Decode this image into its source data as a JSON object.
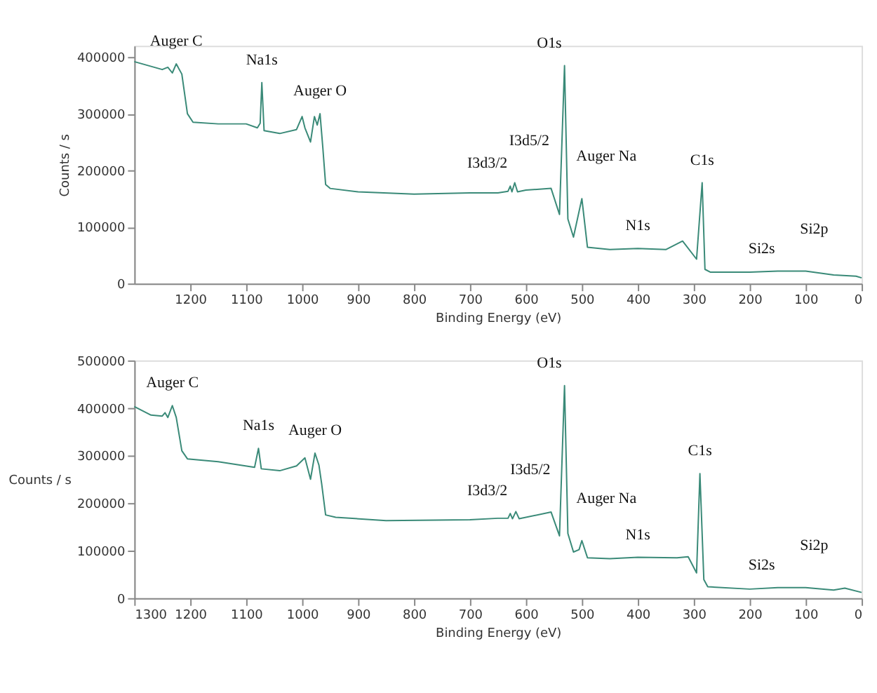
{
  "chart_data": [
    {
      "type": "line",
      "xlabel": "Binding Energy (eV)",
      "ylabel": "Counts / s",
      "xlim": [
        1300,
        0
      ],
      "ylim": [
        0,
        420000
      ],
      "xticks": [
        1200,
        1100,
        1000,
        900,
        800,
        700,
        600,
        500,
        400,
        300,
        200,
        100,
        0
      ],
      "yticks": [
        0,
        100000,
        200000,
        300000,
        400000
      ],
      "grid": false,
      "x": [
        1300,
        1250,
        1240,
        1232,
        1225,
        1215,
        1205,
        1195,
        1150,
        1100,
        1080,
        1075,
        1072,
        1068,
        1040,
        1010,
        1000,
        995,
        985,
        978,
        973,
        968,
        963,
        958,
        950,
        900,
        800,
        700,
        650,
        632,
        628,
        625,
        620,
        615,
        600,
        555,
        540,
        531,
        525,
        515,
        500,
        490,
        450,
        400,
        350,
        320,
        295,
        285,
        280,
        270,
        200,
        150,
        100,
        50,
        10,
        0
      ],
      "series": [
        {
          "color": "#3a8a78",
          "values": [
            392000,
            378000,
            382000,
            372000,
            388000,
            370000,
            300000,
            285000,
            282000,
            282000,
            275000,
            283000,
            355000,
            270000,
            265000,
            272000,
            295000,
            275000,
            250000,
            295000,
            280000,
            300000,
            240000,
            175000,
            168000,
            162000,
            158000,
            160000,
            160000,
            163000,
            172000,
            162000,
            178000,
            162000,
            165000,
            168000,
            122000,
            385000,
            114000,
            82000,
            150000,
            64000,
            60000,
            62000,
            60000,
            75000,
            43000,
            178000,
            25000,
            20000,
            20000,
            22000,
            22000,
            15000,
            13000,
            10000
          ]
        }
      ],
      "annotations": [
        {
          "text": "Auger C",
          "x": 1225,
          "y": 388000
        },
        {
          "text": "Na1s",
          "x": 1072,
          "y": 355000
        },
        {
          "text": "Auger O",
          "x": 968,
          "y": 300000
        },
        {
          "text": "I3d3/2",
          "x": 628,
          "y": 172000
        },
        {
          "text": "I3d5/2",
          "x": 620,
          "y": 178000
        },
        {
          "text": "O1s",
          "x": 531,
          "y": 385000
        },
        {
          "text": "Auger Na",
          "x": 500,
          "y": 150000
        },
        {
          "text": "N1s",
          "x": 400,
          "y": 62000
        },
        {
          "text": "C1s",
          "x": 285,
          "y": 178000
        },
        {
          "text": "Si2s",
          "x": 150,
          "y": 22000
        },
        {
          "text": "Si2p",
          "x": 100,
          "y": 22000
        }
      ]
    },
    {
      "type": "line",
      "xlabel": "Binding Energy (eV)",
      "ylabel": "Counts / s",
      "xlim": [
        1300,
        0
      ],
      "ylim": [
        0,
        500000
      ],
      "xticks": [
        1300,
        1200,
        1100,
        1000,
        900,
        800,
        700,
        600,
        500,
        400,
        300,
        200,
        100,
        0
      ],
      "yticks": [
        0,
        100000,
        200000,
        300000,
        400000,
        500000
      ],
      "grid": false,
      "x": [
        1300,
        1270,
        1250,
        1245,
        1240,
        1232,
        1225,
        1215,
        1205,
        1150,
        1085,
        1078,
        1073,
        1040,
        1010,
        995,
        985,
        977,
        970,
        965,
        958,
        940,
        850,
        700,
        650,
        632,
        628,
        624,
        618,
        612,
        555,
        540,
        531,
        525,
        515,
        505,
        500,
        490,
        450,
        400,
        330,
        310,
        295,
        289,
        282,
        275,
        200,
        150,
        100,
        50,
        30,
        0
      ],
      "series": [
        {
          "color": "#3a8a78",
          "values": [
            403000,
            385000,
            383000,
            390000,
            380000,
            405000,
            380000,
            310000,
            293000,
            287000,
            275000,
            315000,
            272000,
            268000,
            278000,
            295000,
            250000,
            305000,
            280000,
            240000,
            175000,
            170000,
            163000,
            165000,
            168000,
            168000,
            178000,
            167000,
            182000,
            167000,
            181000,
            131000,
            447000,
            136000,
            97000,
            102000,
            121000,
            85000,
            83000,
            86000,
            85000,
            87000,
            53000,
            262000,
            39000,
            24000,
            19000,
            22000,
            22000,
            17000,
            21000,
            12000
          ]
        }
      ],
      "annotations": [
        {
          "text": "Auger C",
          "x": 1232,
          "y": 405000
        },
        {
          "text": "Na1s",
          "x": 1078,
          "y": 315000
        },
        {
          "text": "Auger O",
          "x": 977,
          "y": 305000
        },
        {
          "text": "I3d3/2",
          "x": 628,
          "y": 178000
        },
        {
          "text": "I3d5/2",
          "x": 618,
          "y": 182000
        },
        {
          "text": "O1s",
          "x": 531,
          "y": 447000
        },
        {
          "text": "Auger Na",
          "x": 500,
          "y": 121000
        },
        {
          "text": "N1s",
          "x": 400,
          "y": 86000
        },
        {
          "text": "C1s",
          "x": 289,
          "y": 262000
        },
        {
          "text": "Si2s",
          "x": 150,
          "y": 22000
        },
        {
          "text": "Si2p",
          "x": 100,
          "y": 22000
        }
      ]
    }
  ]
}
